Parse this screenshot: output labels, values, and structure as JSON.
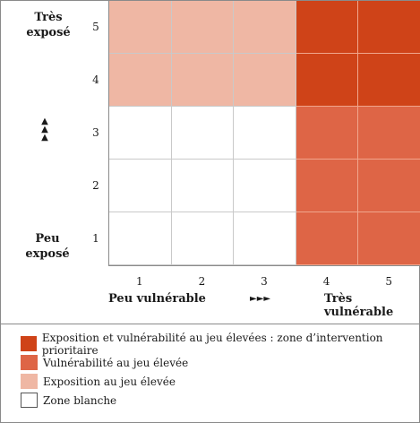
{
  "chart_data": {
    "type": "heatmap",
    "y_labels": [
      "5",
      "4",
      "3",
      "2",
      "1"
    ],
    "x_labels": [
      "1",
      "2",
      "3",
      "4",
      "5"
    ],
    "y_axis_top": "Très exposé",
    "y_axis_bottom": "Peu exposé",
    "y_arrows": "▲▲▲",
    "x_axis_left": "Peu vulnérable",
    "x_axis_arrows": "►►►",
    "x_axis_right": "Très vulnérable",
    "cells": [
      [
        "exposition",
        "exposition",
        "exposition",
        "prioritaire",
        "prioritaire"
      ],
      [
        "exposition",
        "exposition",
        "exposition",
        "prioritaire",
        "prioritaire"
      ],
      [
        "blanche",
        "blanche",
        "blanche",
        "vulnerabilite",
        "vulnerabilite"
      ],
      [
        "blanche",
        "blanche",
        "blanche",
        "vulnerabilite",
        "vulnerabilite"
      ],
      [
        "blanche",
        "blanche",
        "blanche",
        "vulnerabilite",
        "vulnerabilite"
      ]
    ]
  },
  "colors": {
    "prioritaire": "#cf4318",
    "vulnerabilite": "#de6546",
    "exposition": "#efb7a4",
    "blanche": "#ffffff"
  },
  "legend": [
    {
      "key": "prioritaire",
      "label": "Exposition et vulnérabilité au jeu élevées : zone d’intervention prioritaire"
    },
    {
      "key": "vulnerabilite",
      "label": "Vulnérabilité au jeu élevée"
    },
    {
      "key": "exposition",
      "label": "Exposition au jeu élevée"
    },
    {
      "key": "blanche",
      "label": "Zone blanche"
    }
  ]
}
